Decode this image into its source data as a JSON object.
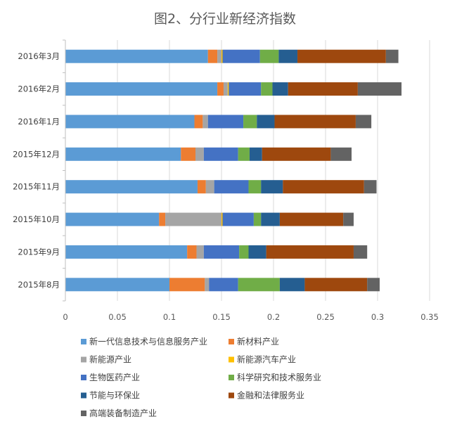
{
  "chart_data": {
    "type": "bar",
    "orientation": "horizontal",
    "stacked": true,
    "title": "图2、分行业新经济指数",
    "categories": [
      "2016年3月",
      "2016年2月",
      "2016年1月",
      "2015年12月",
      "2015年11月",
      "2015年10月",
      "2015年9月",
      "2015年8月"
    ],
    "series": [
      {
        "name": "新一代信息技术与信息服务产业",
        "color": "#5B9BD5",
        "values": [
          0.137,
          0.146,
          0.124,
          0.111,
          0.127,
          0.09,
          0.117,
          0.1
        ]
      },
      {
        "name": "新材料产业",
        "color": "#ED7D31",
        "values": [
          0.009,
          0.006,
          0.008,
          0.014,
          0.008,
          0.006,
          0.009,
          0.034
        ]
      },
      {
        "name": "新能源产业",
        "color": "#A5A5A5",
        "values": [
          0.004,
          0.004,
          0.005,
          0.008,
          0.008,
          0.054,
          0.007,
          0.004
        ]
      },
      {
        "name": "新能源汽车产业",
        "color": "#FFC000",
        "values": [
          0.001,
          0.001,
          0.0,
          0.0,
          0.0,
          0.001,
          0.0,
          0.0
        ]
      },
      {
        "name": "生物医药产业",
        "color": "#4472C4",
        "values": [
          0.036,
          0.031,
          0.034,
          0.033,
          0.033,
          0.03,
          0.034,
          0.028
        ]
      },
      {
        "name": "科学研究和技术服务业",
        "color": "#70AD47",
        "values": [
          0.018,
          0.011,
          0.013,
          0.011,
          0.012,
          0.007,
          0.009,
          0.04
        ]
      },
      {
        "name": "节能与环保业",
        "color": "#255E91",
        "values": [
          0.018,
          0.015,
          0.017,
          0.012,
          0.021,
          0.018,
          0.017,
          0.024
        ]
      },
      {
        "name": "金融和法律服务业",
        "color": "#9E480E",
        "values": [
          0.085,
          0.067,
          0.078,
          0.066,
          0.078,
          0.061,
          0.084,
          0.06
        ]
      },
      {
        "name": "高端装备制造产业",
        "color": "#636363",
        "values": [
          0.012,
          0.042,
          0.015,
          0.02,
          0.012,
          0.01,
          0.013,
          0.012
        ]
      }
    ],
    "xlim": [
      0,
      0.35
    ],
    "xticks": [
      "0",
      "0.05",
      "0.1",
      "0.15",
      "0.2",
      "0.25",
      "0.3",
      "0.35"
    ],
    "grid": "vertical",
    "legend_position": "bottom"
  }
}
